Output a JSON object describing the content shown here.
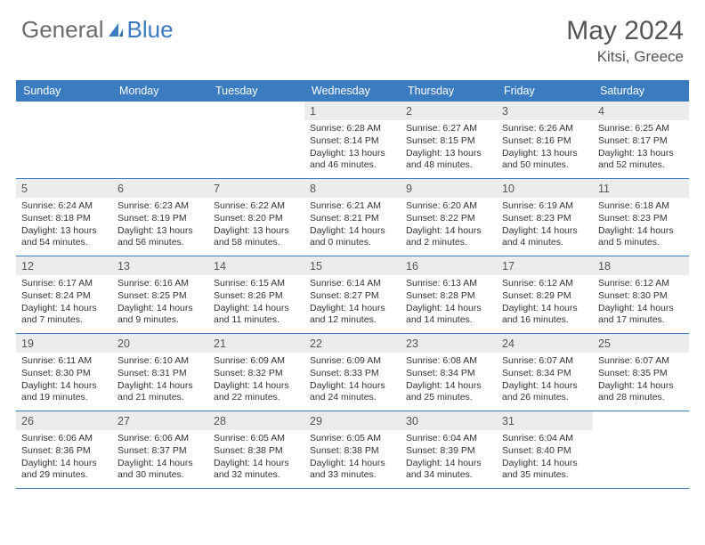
{
  "logo": {
    "text1": "General",
    "text2": "Blue"
  },
  "title": "May 2024",
  "subtitle": "Kitsi, Greece",
  "colors": {
    "header_bg": "#3b7bbf",
    "header_fg": "#ffffff",
    "daynum_bg": "#ececec",
    "border": "#3b7bbf",
    "text": "#333333",
    "title": "#555555"
  },
  "day_names": [
    "Sunday",
    "Monday",
    "Tuesday",
    "Wednesday",
    "Thursday",
    "Friday",
    "Saturday"
  ],
  "weeks": [
    [
      {
        "n": "",
        "empty": true
      },
      {
        "n": "",
        "empty": true
      },
      {
        "n": "",
        "empty": true
      },
      {
        "n": "1",
        "sr": "Sunrise: 6:28 AM",
        "ss": "Sunset: 8:14 PM",
        "dl1": "Daylight: 13 hours",
        "dl2": "and 46 minutes."
      },
      {
        "n": "2",
        "sr": "Sunrise: 6:27 AM",
        "ss": "Sunset: 8:15 PM",
        "dl1": "Daylight: 13 hours",
        "dl2": "and 48 minutes."
      },
      {
        "n": "3",
        "sr": "Sunrise: 6:26 AM",
        "ss": "Sunset: 8:16 PM",
        "dl1": "Daylight: 13 hours",
        "dl2": "and 50 minutes."
      },
      {
        "n": "4",
        "sr": "Sunrise: 6:25 AM",
        "ss": "Sunset: 8:17 PM",
        "dl1": "Daylight: 13 hours",
        "dl2": "and 52 minutes."
      }
    ],
    [
      {
        "n": "5",
        "sr": "Sunrise: 6:24 AM",
        "ss": "Sunset: 8:18 PM",
        "dl1": "Daylight: 13 hours",
        "dl2": "and 54 minutes."
      },
      {
        "n": "6",
        "sr": "Sunrise: 6:23 AM",
        "ss": "Sunset: 8:19 PM",
        "dl1": "Daylight: 13 hours",
        "dl2": "and 56 minutes."
      },
      {
        "n": "7",
        "sr": "Sunrise: 6:22 AM",
        "ss": "Sunset: 8:20 PM",
        "dl1": "Daylight: 13 hours",
        "dl2": "and 58 minutes."
      },
      {
        "n": "8",
        "sr": "Sunrise: 6:21 AM",
        "ss": "Sunset: 8:21 PM",
        "dl1": "Daylight: 14 hours",
        "dl2": "and 0 minutes."
      },
      {
        "n": "9",
        "sr": "Sunrise: 6:20 AM",
        "ss": "Sunset: 8:22 PM",
        "dl1": "Daylight: 14 hours",
        "dl2": "and 2 minutes."
      },
      {
        "n": "10",
        "sr": "Sunrise: 6:19 AM",
        "ss": "Sunset: 8:23 PM",
        "dl1": "Daylight: 14 hours",
        "dl2": "and 4 minutes."
      },
      {
        "n": "11",
        "sr": "Sunrise: 6:18 AM",
        "ss": "Sunset: 8:23 PM",
        "dl1": "Daylight: 14 hours",
        "dl2": "and 5 minutes."
      }
    ],
    [
      {
        "n": "12",
        "sr": "Sunrise: 6:17 AM",
        "ss": "Sunset: 8:24 PM",
        "dl1": "Daylight: 14 hours",
        "dl2": "and 7 minutes."
      },
      {
        "n": "13",
        "sr": "Sunrise: 6:16 AM",
        "ss": "Sunset: 8:25 PM",
        "dl1": "Daylight: 14 hours",
        "dl2": "and 9 minutes."
      },
      {
        "n": "14",
        "sr": "Sunrise: 6:15 AM",
        "ss": "Sunset: 8:26 PM",
        "dl1": "Daylight: 14 hours",
        "dl2": "and 11 minutes."
      },
      {
        "n": "15",
        "sr": "Sunrise: 6:14 AM",
        "ss": "Sunset: 8:27 PM",
        "dl1": "Daylight: 14 hours",
        "dl2": "and 12 minutes."
      },
      {
        "n": "16",
        "sr": "Sunrise: 6:13 AM",
        "ss": "Sunset: 8:28 PM",
        "dl1": "Daylight: 14 hours",
        "dl2": "and 14 minutes."
      },
      {
        "n": "17",
        "sr": "Sunrise: 6:12 AM",
        "ss": "Sunset: 8:29 PM",
        "dl1": "Daylight: 14 hours",
        "dl2": "and 16 minutes."
      },
      {
        "n": "18",
        "sr": "Sunrise: 6:12 AM",
        "ss": "Sunset: 8:30 PM",
        "dl1": "Daylight: 14 hours",
        "dl2": "and 17 minutes."
      }
    ],
    [
      {
        "n": "19",
        "sr": "Sunrise: 6:11 AM",
        "ss": "Sunset: 8:30 PM",
        "dl1": "Daylight: 14 hours",
        "dl2": "and 19 minutes."
      },
      {
        "n": "20",
        "sr": "Sunrise: 6:10 AM",
        "ss": "Sunset: 8:31 PM",
        "dl1": "Daylight: 14 hours",
        "dl2": "and 21 minutes."
      },
      {
        "n": "21",
        "sr": "Sunrise: 6:09 AM",
        "ss": "Sunset: 8:32 PM",
        "dl1": "Daylight: 14 hours",
        "dl2": "and 22 minutes."
      },
      {
        "n": "22",
        "sr": "Sunrise: 6:09 AM",
        "ss": "Sunset: 8:33 PM",
        "dl1": "Daylight: 14 hours",
        "dl2": "and 24 minutes."
      },
      {
        "n": "23",
        "sr": "Sunrise: 6:08 AM",
        "ss": "Sunset: 8:34 PM",
        "dl1": "Daylight: 14 hours",
        "dl2": "and 25 minutes."
      },
      {
        "n": "24",
        "sr": "Sunrise: 6:07 AM",
        "ss": "Sunset: 8:34 PM",
        "dl1": "Daylight: 14 hours",
        "dl2": "and 26 minutes."
      },
      {
        "n": "25",
        "sr": "Sunrise: 6:07 AM",
        "ss": "Sunset: 8:35 PM",
        "dl1": "Daylight: 14 hours",
        "dl2": "and 28 minutes."
      }
    ],
    [
      {
        "n": "26",
        "sr": "Sunrise: 6:06 AM",
        "ss": "Sunset: 8:36 PM",
        "dl1": "Daylight: 14 hours",
        "dl2": "and 29 minutes."
      },
      {
        "n": "27",
        "sr": "Sunrise: 6:06 AM",
        "ss": "Sunset: 8:37 PM",
        "dl1": "Daylight: 14 hours",
        "dl2": "and 30 minutes."
      },
      {
        "n": "28",
        "sr": "Sunrise: 6:05 AM",
        "ss": "Sunset: 8:38 PM",
        "dl1": "Daylight: 14 hours",
        "dl2": "and 32 minutes."
      },
      {
        "n": "29",
        "sr": "Sunrise: 6:05 AM",
        "ss": "Sunset: 8:38 PM",
        "dl1": "Daylight: 14 hours",
        "dl2": "and 33 minutes."
      },
      {
        "n": "30",
        "sr": "Sunrise: 6:04 AM",
        "ss": "Sunset: 8:39 PM",
        "dl1": "Daylight: 14 hours",
        "dl2": "and 34 minutes."
      },
      {
        "n": "31",
        "sr": "Sunrise: 6:04 AM",
        "ss": "Sunset: 8:40 PM",
        "dl1": "Daylight: 14 hours",
        "dl2": "and 35 minutes."
      },
      {
        "n": "",
        "empty": true
      }
    ]
  ]
}
